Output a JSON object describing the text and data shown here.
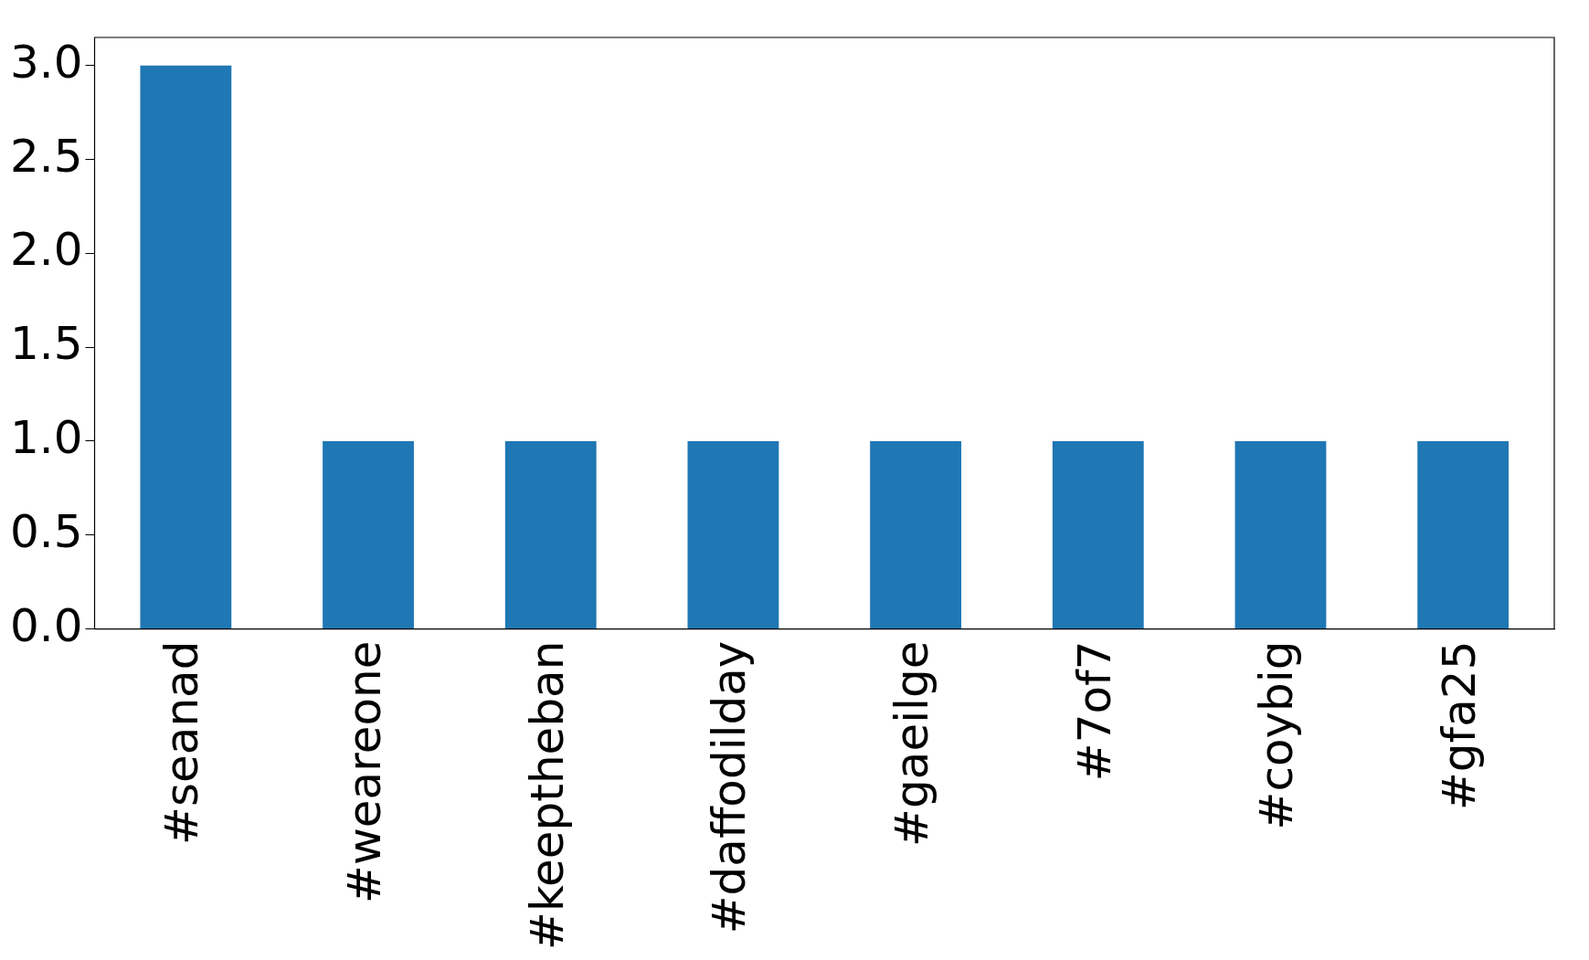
{
  "chart_data": {
    "type": "bar",
    "categories": [
      "#seanad",
      "#weareone",
      "#keeptheban",
      "#daffodilday",
      "#gaeilge",
      "#7of7",
      "#coybig",
      "#gfa25"
    ],
    "values": [
      3,
      1,
      1,
      1,
      1,
      1,
      1,
      1
    ],
    "color": "#1f77b4",
    "ylim": [
      0,
      3.15
    ],
    "yticks": [
      {
        "value": 0,
        "label": "0.0"
      },
      {
        "value": 0.5,
        "label": "0.5"
      },
      {
        "value": 1,
        "label": "1.0"
      },
      {
        "value": 1.5,
        "label": "1.5"
      },
      {
        "value": 2,
        "label": "2.0"
      },
      {
        "value": 2.5,
        "label": "2.5"
      },
      {
        "value": 3,
        "label": "3.0"
      }
    ],
    "grid": false,
    "legend": false
  }
}
